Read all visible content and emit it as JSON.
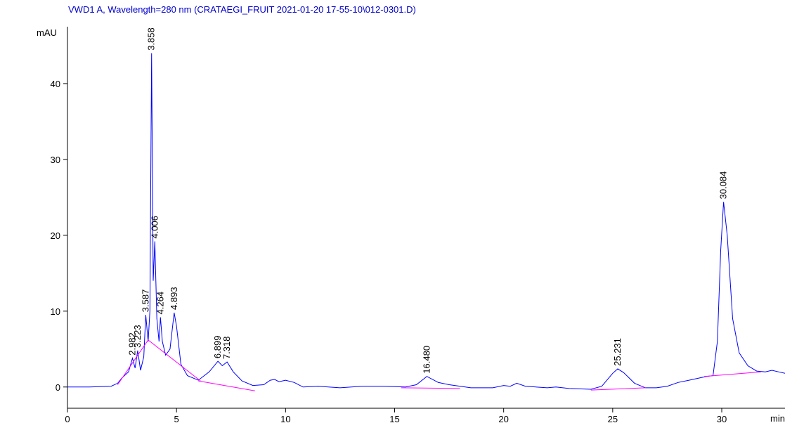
{
  "chart_data": {
    "type": "line",
    "title": "VWD1 A, Wavelength=280 nm (CRATAEGI_FRUIT 2021-01-20 17-55-10\\012-0301.D)",
    "y_label": "mAU",
    "x_label": "min",
    "xlim": [
      0,
      32.9
    ],
    "ylim": [
      -2.8,
      47.5
    ],
    "xticks": [
      0,
      5,
      10,
      15,
      20,
      25,
      30
    ],
    "yticks": [
      0,
      10,
      20,
      30,
      40
    ],
    "series": [
      {
        "color": "#0000ff",
        "x": [
          0,
          1,
          2,
          2.3,
          2.5,
          2.8,
          2.98,
          3.1,
          3.22,
          3.35,
          3.5,
          3.59,
          3.7,
          3.78,
          3.858,
          3.93,
          4.006,
          4.1,
          4.2,
          4.264,
          4.35,
          4.5,
          4.7,
          4.893,
          5.0,
          5.2,
          5.5,
          6.0,
          6.5,
          6.899,
          7.1,
          7.318,
          7.6,
          8.0,
          8.5,
          9.0,
          9.3,
          9.5,
          9.7,
          10.0,
          10.4,
          10.8,
          11.5,
          12.5,
          13.5,
          14.5,
          15.5,
          16.0,
          16.48,
          17.0,
          17.5,
          18.5,
          19.5,
          20.0,
          20.3,
          20.6,
          21.0,
          22.0,
          22.4,
          23.0,
          24.0,
          24.5,
          25.0,
          25.231,
          25.5,
          26.0,
          26.5,
          27.0,
          27.5,
          28.0,
          28.5,
          29.0,
          29.3,
          29.6,
          29.8,
          29.95,
          30.084,
          30.25,
          30.5,
          30.8,
          31.2,
          31.6,
          32.0,
          32.3,
          32.6,
          32.9
        ],
        "values": [
          0,
          0,
          0.1,
          0.5,
          1.2,
          2.0,
          3.8,
          2.5,
          4.8,
          2.2,
          4.0,
          9.5,
          6.0,
          10,
          44,
          14,
          19.2,
          9,
          6,
          9.2,
          6,
          4.2,
          5,
          9.8,
          8,
          3,
          1.5,
          0.9,
          2.0,
          3.4,
          2.8,
          3.3,
          2.0,
          0.8,
          0.2,
          0.3,
          0.9,
          1.0,
          0.7,
          0.9,
          0.6,
          0,
          0.1,
          -0.1,
          0.1,
          0.1,
          0,
          0.3,
          1.4,
          0.6,
          0.3,
          -0.1,
          -0.1,
          0.2,
          0.1,
          0.5,
          0.1,
          -0.1,
          0,
          -0.2,
          -0.3,
          0.1,
          1.8,
          2.4,
          1.9,
          0.5,
          -0.1,
          -0.1,
          0.1,
          0.6,
          0.9,
          1.2,
          1.4,
          1.5,
          6,
          18,
          24.4,
          20,
          9,
          4.5,
          2.8,
          2.1,
          2.0,
          2.2,
          2.0,
          1.8
        ]
      },
      {
        "color": "#ff00ff",
        "x": [
          2.3,
          3.7,
          6.1,
          null,
          6.0,
          8.6,
          null,
          15.3,
          18.0,
          null,
          24.0,
          26.5,
          null,
          29.2,
          31.8
        ],
        "values": [
          0.3,
          6.2,
          0.8,
          null,
          0.8,
          -0.5,
          null,
          -0.1,
          -0.2,
          null,
          -0.4,
          -0.1,
          null,
          1.4,
          2.0
        ]
      }
    ],
    "peaks": [
      {
        "rt": 2.982,
        "height": 3.8
      },
      {
        "rt": 3.223,
        "height": 4.8
      },
      {
        "rt": 3.587,
        "height": 9.5
      },
      {
        "rt": 3.858,
        "height": 44
      },
      {
        "rt": 4.006,
        "height": 19.2
      },
      {
        "rt": 4.264,
        "height": 9.2
      },
      {
        "rt": 4.893,
        "height": 9.8
      },
      {
        "rt": 6.899,
        "height": 3.4
      },
      {
        "rt": 7.318,
        "height": 3.3
      },
      {
        "rt": 16.48,
        "label": "16.480",
        "height": 1.4
      },
      {
        "rt": 25.231,
        "height": 2.4
      },
      {
        "rt": 30.084,
        "height": 24.4
      }
    ]
  }
}
